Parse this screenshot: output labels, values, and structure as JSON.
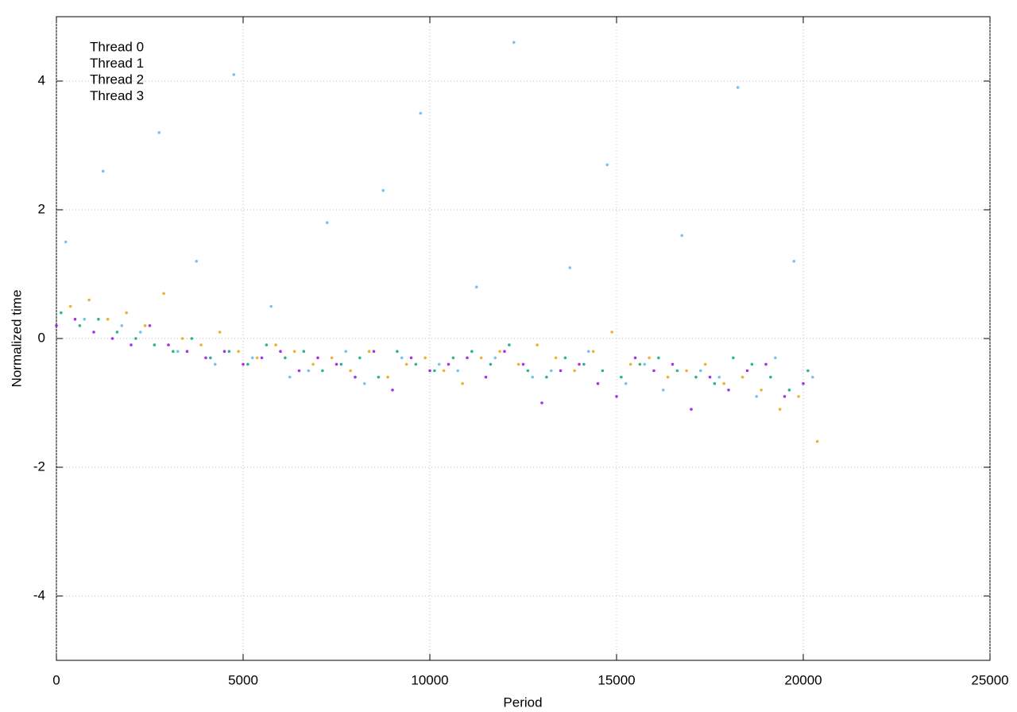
{
  "chart_data": {
    "type": "scatter",
    "xlabel": "Period",
    "ylabel": "Normalized time",
    "xlim": [
      0,
      25000
    ],
    "xticks": [
      0,
      5000,
      10000,
      15000,
      20000,
      25000
    ],
    "ylim": [
      -5,
      5
    ],
    "yticks": [
      -4,
      -2,
      0,
      2,
      4
    ],
    "grid": true,
    "legend": "upper-left",
    "series": [
      {
        "name": "Thread 0",
        "color": "#9400d3",
        "x": [
          0,
          500,
          1000,
          1500,
          2000,
          2500,
          3000,
          3500,
          4000,
          4500,
          5000,
          5500,
          6000,
          6500,
          7000,
          7500,
          8000,
          8500,
          9000,
          9500,
          10000,
          10500,
          11000,
          11500,
          12000,
          12500,
          13000,
          13500,
          14000,
          14500,
          15000,
          15500,
          16000,
          16500,
          17000,
          17500,
          18000,
          18500,
          19000,
          19500,
          20000
        ],
        "values": [
          0.2,
          0.3,
          0.1,
          0.0,
          -0.1,
          0.2,
          -0.1,
          -0.2,
          -0.3,
          -0.2,
          -0.4,
          -0.3,
          -0.2,
          -0.5,
          -0.3,
          -0.4,
          -0.6,
          -0.2,
          -0.8,
          -0.3,
          -0.5,
          -0.4,
          -0.3,
          -0.6,
          -0.2,
          -0.4,
          -1.0,
          -0.5,
          -0.4,
          -0.7,
          -0.9,
          -0.3,
          -0.5,
          -0.4,
          -1.1,
          -0.6,
          -0.8,
          -0.5,
          -0.4,
          -0.9,
          -0.7
        ]
      },
      {
        "name": "Thread 1",
        "color": "#009e73",
        "x": [
          125,
          625,
          1125,
          1625,
          2125,
          2625,
          3125,
          3625,
          4125,
          4625,
          5125,
          5625,
          6125,
          6625,
          7125,
          7625,
          8125,
          8625,
          9125,
          9625,
          10125,
          10625,
          11125,
          11625,
          12125,
          12625,
          13125,
          13625,
          14125,
          14625,
          15125,
          15625,
          16125,
          16625,
          17125,
          17625,
          18125,
          18625,
          19125,
          19625,
          20125
        ],
        "values": [
          0.4,
          0.2,
          0.3,
          0.1,
          0.0,
          -0.1,
          -0.2,
          0.0,
          -0.3,
          -0.2,
          -0.4,
          -0.1,
          -0.3,
          -0.2,
          -0.5,
          -0.4,
          -0.3,
          -0.6,
          -0.2,
          -0.4,
          -0.5,
          -0.3,
          -0.2,
          -0.4,
          -0.1,
          -0.5,
          -0.6,
          -0.3,
          -0.4,
          -0.5,
          -0.6,
          -0.4,
          -0.3,
          -0.5,
          -0.6,
          -0.7,
          -0.3,
          -0.4,
          -0.6,
          -0.8,
          -0.5
        ]
      },
      {
        "name": "Thread 2",
        "color": "#56b4e9",
        "x": [
          250,
          750,
          1250,
          1750,
          2250,
          2750,
          3250,
          3750,
          4250,
          4750,
          5250,
          5750,
          6250,
          6750,
          7250,
          7750,
          8250,
          8750,
          9250,
          9750,
          10250,
          10750,
          11250,
          11750,
          12250,
          12750,
          13250,
          13750,
          14250,
          14750,
          15250,
          15750,
          16250,
          16750,
          17250,
          17750,
          18250,
          18750,
          19250,
          19750,
          20250
        ],
        "values": [
          1.5,
          0.3,
          2.6,
          0.2,
          0.1,
          3.2,
          -0.2,
          1.2,
          -0.4,
          4.1,
          -0.3,
          0.5,
          -0.6,
          -0.5,
          1.8,
          -0.2,
          -0.7,
          2.3,
          -0.3,
          3.5,
          -0.4,
          -0.5,
          0.8,
          -0.3,
          4.6,
          -0.6,
          -0.5,
          1.1,
          -0.2,
          2.7,
          -0.7,
          -0.4,
          -0.8,
          1.6,
          -0.5,
          -0.6,
          3.9,
          -0.9,
          -0.3,
          1.2,
          -0.6
        ]
      },
      {
        "name": "Thread 3",
        "color": "#e69f00",
        "x": [
          375,
          875,
          1375,
          1875,
          2375,
          2875,
          3375,
          3875,
          4375,
          4875,
          5375,
          5875,
          6375,
          6875,
          7375,
          7875,
          8375,
          8875,
          9375,
          9875,
          10375,
          10875,
          11375,
          11875,
          12375,
          12875,
          13375,
          13875,
          14375,
          14875,
          15375,
          15875,
          16375,
          16875,
          17375,
          17875,
          18375,
          18875,
          19375,
          19875,
          20375
        ],
        "values": [
          0.5,
          0.6,
          0.3,
          0.4,
          0.2,
          0.7,
          0.0,
          -0.1,
          0.1,
          -0.2,
          -0.3,
          -0.1,
          -0.2,
          -0.4,
          -0.3,
          -0.5,
          -0.2,
          -0.6,
          -0.4,
          -0.3,
          -0.5,
          -0.7,
          -0.3,
          -0.2,
          -0.4,
          -0.1,
          -0.3,
          -0.5,
          -0.2,
          0.1,
          -0.4,
          -0.3,
          -0.6,
          -0.5,
          -0.4,
          -0.7,
          -0.6,
          -0.8,
          -1.1,
          -0.9,
          -1.6
        ]
      }
    ]
  }
}
